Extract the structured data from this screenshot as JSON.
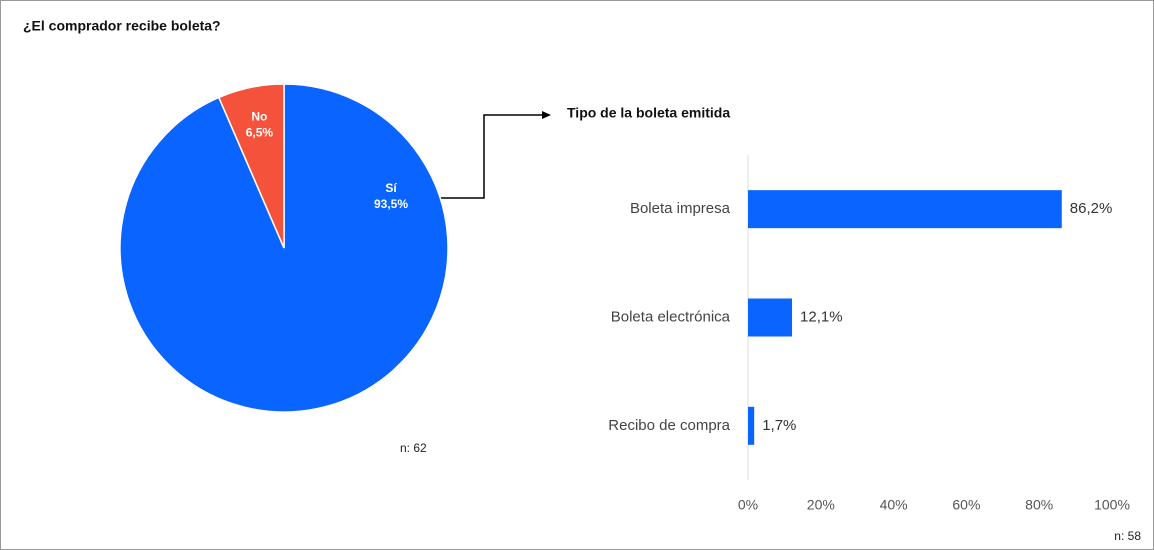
{
  "chart_data": [
    {
      "type": "pie",
      "title": "¿El comprador recibe boleta?",
      "categories": [
        "Sí",
        "No"
      ],
      "values": [
        93.5,
        6.5
      ],
      "value_labels": [
        "93,5%",
        "6,5%"
      ],
      "colors": [
        "#0a64ff",
        "#f4523b"
      ],
      "annotation": "n: 62"
    },
    {
      "type": "barh",
      "title": "Tipo de la boleta emitida",
      "categories": [
        "Boleta impresa",
        "Boleta electrónica",
        "Recibo de compra"
      ],
      "values": [
        86.2,
        12.1,
        1.7
      ],
      "value_labels": [
        "86,2%",
        "12,1%",
        "1,7%"
      ],
      "color": "#0a64ff",
      "xlim": [
        0,
        100
      ],
      "xticks": [
        {
          "value": 0,
          "label": "0%"
        },
        {
          "value": 20,
          "label": "20%"
        },
        {
          "value": 40,
          "label": "40%"
        },
        {
          "value": 60,
          "label": "60%"
        },
        {
          "value": 80,
          "label": "80%"
        },
        {
          "value": 100,
          "label": "100%"
        }
      ],
      "annotation": "n: 58"
    }
  ]
}
